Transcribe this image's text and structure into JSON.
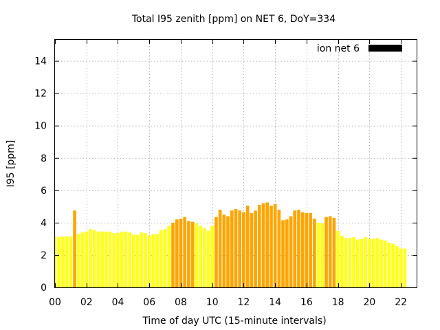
{
  "chart_data": {
    "type": "bar",
    "title": "Total I95 zenith [ppm] on NET 6, DoY=334",
    "xlabel": "Time of day UTC (15-minute intervals)",
    "ylabel": "I95 [ppm]",
    "xlim": [
      0,
      23
    ],
    "ylim": [
      0,
      15.3
    ],
    "x_tick_values": [
      0,
      2,
      4,
      6,
      8,
      10,
      12,
      14,
      16,
      18,
      20,
      22
    ],
    "x_tick_labels": [
      "00",
      "02",
      "04",
      "06",
      "08",
      "10",
      "12",
      "14",
      "16",
      "18",
      "20",
      "22"
    ],
    "y_tick_values": [
      0,
      2,
      4,
      6,
      8,
      10,
      12,
      14
    ],
    "y_tick_labels": [
      "0",
      "2",
      "4",
      "6",
      "8",
      "10",
      "12",
      "14"
    ],
    "grid": true,
    "legend": {
      "label": "ion net 6",
      "color": "#000000",
      "placement": "top-right"
    },
    "colors": {
      "low": "#ffff1a",
      "high": "#ffa500"
    },
    "interval_hours": 0.25,
    "values": [
      3.15,
      3.1,
      3.15,
      3.15,
      3.15,
      4.75,
      3.3,
      3.4,
      3.45,
      3.6,
      3.55,
      3.45,
      3.45,
      3.45,
      3.45,
      3.35,
      3.35,
      3.45,
      3.45,
      3.4,
      3.25,
      3.25,
      3.4,
      3.35,
      3.2,
      3.3,
      3.3,
      3.55,
      3.6,
      3.8,
      4.0,
      4.2,
      4.25,
      4.35,
      4.1,
      4.05,
      3.95,
      3.8,
      3.65,
      3.5,
      3.8,
      4.35,
      4.8,
      4.5,
      4.4,
      4.75,
      4.85,
      4.75,
      4.65,
      5.05,
      4.6,
      4.75,
      5.1,
      5.2,
      5.25,
      5.05,
      5.15,
      4.8,
      4.15,
      4.2,
      4.4,
      4.75,
      4.8,
      4.65,
      4.6,
      4.6,
      4.25,
      4.0,
      3.95,
      4.35,
      4.4,
      4.3,
      3.5,
      3.2,
      3.05,
      3.05,
      3.1,
      2.95,
      3.0,
      3.1,
      3.0,
      3.0,
      3.05,
      2.95,
      2.9,
      2.75,
      2.7,
      2.55,
      2.4,
      2.4
    ],
    "highlight": [
      0,
      0,
      0,
      0,
      0,
      1,
      0,
      0,
      0,
      0,
      0,
      0,
      0,
      0,
      0,
      0,
      0,
      0,
      0,
      0,
      0,
      0,
      0,
      0,
      0,
      0,
      0,
      0,
      0,
      0,
      1,
      1,
      1,
      1,
      1,
      1,
      0,
      0,
      0,
      0,
      0,
      1,
      1,
      1,
      1,
      1,
      1,
      1,
      1,
      1,
      1,
      1,
      1,
      1,
      1,
      1,
      1,
      1,
      1,
      1,
      1,
      1,
      1,
      1,
      1,
      1,
      1,
      0,
      0,
      1,
      1,
      1,
      0,
      0,
      0,
      0,
      0,
      0,
      0,
      0,
      0,
      0,
      0,
      0,
      0,
      0,
      0,
      0,
      0,
      0
    ]
  }
}
